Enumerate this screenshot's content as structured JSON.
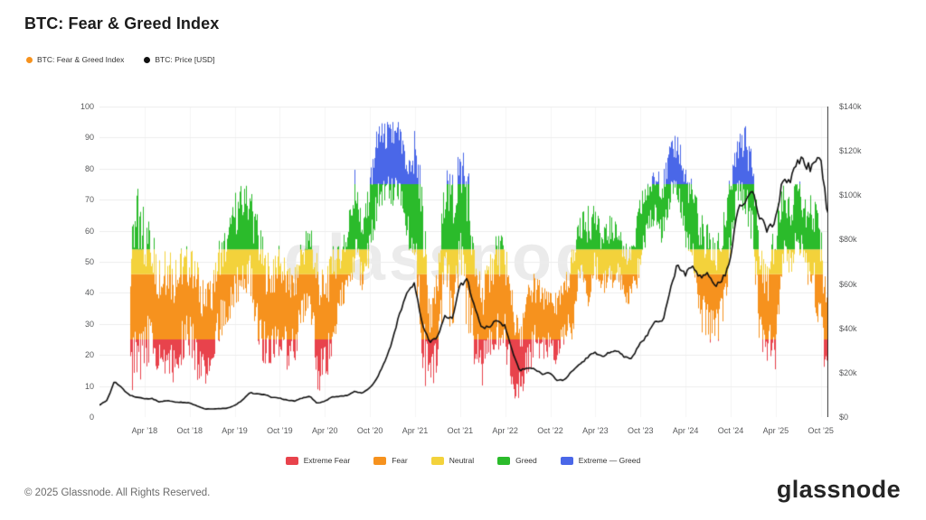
{
  "header": {
    "title": "BTC: Fear & Greed Index"
  },
  "top_legend": [
    {
      "label": "BTC: Fear & Greed Index",
      "color": "#f6921e"
    },
    {
      "label": "BTC: Price [USD]",
      "color": "#111111"
    }
  ],
  "bottom_legend": [
    {
      "label": "Extreme Fear",
      "color": "#e8434c"
    },
    {
      "label": "Fear",
      "color": "#f6921e"
    },
    {
      "label": "Neutral",
      "color": "#f3d23b"
    },
    {
      "label": "Greed",
      "color": "#2bbb2b"
    },
    {
      "label": "Extreme — Greed",
      "color": "#4a67e8"
    }
  ],
  "footer": {
    "copyright": "© 2025 Glassnode. All Rights Reserved.",
    "brand": "glassnode"
  },
  "watermark": "glassnode",
  "chart_data": {
    "type": "line",
    "title": "BTC: Fear & Greed Index",
    "grid": true,
    "left_axis": {
      "name": "Fear & Greed Index",
      "range": [
        0,
        100
      ],
      "ticks": [
        0,
        10,
        20,
        30,
        40,
        50,
        60,
        70,
        80,
        90,
        100
      ]
    },
    "right_axis": {
      "name": "BTC Price [USD]",
      "range_thousands": [
        0,
        140
      ],
      "ticks": [
        "$0",
        "$20k",
        "$40k",
        "$60k",
        "$80k",
        "$100k",
        "$120k",
        "$140k"
      ]
    },
    "x_axis": {
      "tick_labels": [
        "Apr ’18",
        "Oct ’18",
        "Apr ’19",
        "Oct ’19",
        "Apr ’20",
        "Oct ’20",
        "Apr ’21",
        "Oct ’21",
        "Apr ’22",
        "Oct ’22",
        "Apr ’23",
        "Oct ’23",
        "Apr ’24",
        "Oct ’24",
        "Apr ’25",
        "Oct ’25"
      ],
      "tick_month_index": [
        6,
        12,
        18,
        24,
        30,
        36,
        42,
        48,
        54,
        60,
        66,
        72,
        78,
        84,
        90,
        96
      ]
    },
    "bands": [
      {
        "name": "Extreme Fear",
        "min": 0,
        "max": 25,
        "color": "#e8434c"
      },
      {
        "name": "Fear",
        "min": 25,
        "max": 46,
        "color": "#f6921e"
      },
      {
        "name": "Neutral",
        "min": 46,
        "max": 54,
        "color": "#f3d23b"
      },
      {
        "name": "Greed",
        "min": 54,
        "max": 75,
        "color": "#2bbb2b"
      },
      {
        "name": "Extreme — Greed",
        "min": 75,
        "max": 100,
        "color": "#4a67e8"
      }
    ],
    "price_color": "#101010",
    "months": [
      "2017-10",
      "2017-11",
      "2017-12",
      "2018-01",
      "2018-02",
      "2018-03",
      "2018-04",
      "2018-05",
      "2018-06",
      "2018-07",
      "2018-08",
      "2018-09",
      "2018-10",
      "2018-11",
      "2018-12",
      "2019-01",
      "2019-02",
      "2019-03",
      "2019-04",
      "2019-05",
      "2019-06",
      "2019-07",
      "2019-08",
      "2019-09",
      "2019-10",
      "2019-11",
      "2019-12",
      "2020-01",
      "2020-02",
      "2020-03",
      "2020-04",
      "2020-05",
      "2020-06",
      "2020-07",
      "2020-08",
      "2020-09",
      "2020-10",
      "2020-11",
      "2020-12",
      "2021-01",
      "2021-02",
      "2021-03",
      "2021-04",
      "2021-05",
      "2021-06",
      "2021-07",
      "2021-08",
      "2021-09",
      "2021-10",
      "2021-11",
      "2021-12",
      "2022-01",
      "2022-02",
      "2022-03",
      "2022-04",
      "2022-05",
      "2022-06",
      "2022-07",
      "2022-08",
      "2022-09",
      "2022-10",
      "2022-11",
      "2022-12",
      "2023-01",
      "2023-02",
      "2023-03",
      "2023-04",
      "2023-05",
      "2023-06",
      "2023-07",
      "2023-08",
      "2023-09",
      "2023-10",
      "2023-11",
      "2023-12",
      "2024-01",
      "2024-02",
      "2024-03",
      "2024-04",
      "2024-05",
      "2024-06",
      "2024-07",
      "2024-08",
      "2024-09",
      "2024-10",
      "2024-11",
      "2024-12",
      "2025-01",
      "2025-02",
      "2025-03",
      "2025-04",
      "2025-05",
      "2025-06",
      "2025-07",
      "2025-08",
      "2025-09",
      "2025-10",
      "2025-11"
    ],
    "index_monthly_low": [
      null,
      null,
      null,
      null,
      8,
      10,
      15,
      20,
      12,
      15,
      10,
      18,
      20,
      12,
      10,
      18,
      25,
      30,
      35,
      40,
      40,
      25,
      15,
      18,
      20,
      15,
      18,
      30,
      35,
      8,
      10,
      20,
      35,
      38,
      48,
      40,
      50,
      65,
      70,
      68,
      70,
      55,
      50,
      10,
      10,
      12,
      45,
      20,
      50,
      25,
      16,
      10,
      20,
      22,
      20,
      6,
      6,
      12,
      20,
      18,
      20,
      16,
      25,
      25,
      45,
      35,
      45,
      40,
      40,
      45,
      35,
      38,
      44,
      60,
      62,
      55,
      68,
      70,
      55,
      50,
      28,
      25,
      22,
      28,
      50,
      70,
      65,
      55,
      20,
      18,
      15,
      50,
      45,
      55,
      44,
      40,
      25,
      8
    ],
    "index_monthly_high": [
      null,
      null,
      null,
      null,
      55,
      74,
      66,
      60,
      50,
      55,
      50,
      55,
      55,
      50,
      42,
      45,
      58,
      60,
      72,
      75,
      74,
      65,
      55,
      50,
      56,
      48,
      48,
      58,
      62,
      52,
      45,
      55,
      55,
      62,
      80,
      62,
      78,
      94,
      95,
      95,
      95,
      80,
      93,
      75,
      35,
      48,
      80,
      78,
      86,
      84,
      50,
      45,
      52,
      60,
      57,
      40,
      28,
      42,
      47,
      42,
      40,
      40,
      45,
      55,
      65,
      68,
      68,
      60,
      65,
      62,
      56,
      55,
      72,
      75,
      80,
      78,
      88,
      92,
      80,
      76,
      66,
      62,
      56,
      64,
      78,
      90,
      94,
      84,
      55,
      48,
      65,
      75,
      70,
      78,
      70,
      72,
      64,
      35
    ],
    "price_monthly_kusd": [
      5.5,
      7.5,
      16,
      13,
      9.8,
      9,
      8.2,
      8.4,
      6.8,
      7.4,
      6.9,
      6.6,
      6.4,
      5.0,
      3.7,
      3.6,
      3.8,
      4.0,
      5.2,
      7.5,
      11.0,
      10.5,
      10.2,
      8.8,
      8.6,
      7.6,
      7.2,
      8.5,
      9.4,
      6.2,
      7.1,
      9.1,
      9.3,
      9.8,
      11.6,
      10.7,
      13.0,
      17.5,
      25.0,
      34,
      47,
      56,
      60,
      42,
      34,
      36,
      46,
      44,
      59,
      62,
      49,
      40,
      41,
      44,
      41,
      30,
      21,
      22.5,
      21.5,
      19.5,
      20,
      16.5,
      16.8,
      21,
      23.5,
      27,
      29,
      27.5,
      29,
      29.8,
      27,
      26.8,
      33,
      37,
      43,
      42.8,
      56,
      69,
      64,
      68,
      63,
      65,
      59,
      62,
      69,
      94,
      96,
      103,
      90,
      84,
      88,
      106,
      106,
      117,
      114,
      112,
      119,
      92
    ]
  }
}
